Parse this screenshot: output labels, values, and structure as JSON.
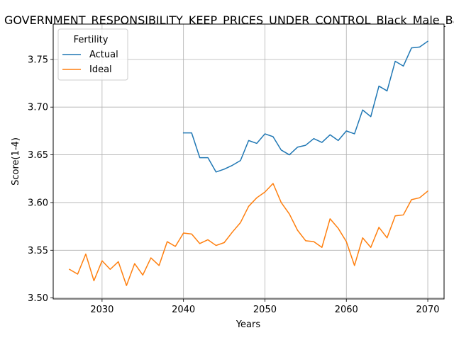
{
  "chart_data": {
    "type": "line",
    "title": "GOVERNMENT_RESPONSIBILITY_KEEP_PRICES_UNDER_CONTROL_Black_Male_Bachelor",
    "xlabel": "Years",
    "ylabel": "Score(1-4)",
    "xlim": [
      2024,
      2072
    ],
    "ylim": [
      3.499,
      3.787
    ],
    "xticks": [
      2030,
      2040,
      2050,
      2060,
      2070
    ],
    "yticks": [
      3.5,
      3.55,
      3.6,
      3.65,
      3.7,
      3.75
    ],
    "ytick_labels": [
      "3.50",
      "3.55",
      "3.60",
      "3.65",
      "3.70",
      "3.75"
    ],
    "grid": true,
    "legend": {
      "title": "Fertility",
      "placement": "top-left"
    },
    "series": [
      {
        "name": "Actual",
        "color": "#1f77b4",
        "x": [
          2040,
          2041,
          2042,
          2043,
          2044,
          2045,
          2046,
          2047,
          2048,
          2049,
          2050,
          2051,
          2052,
          2053,
          2054,
          2055,
          2056,
          2057,
          2058,
          2059,
          2060,
          2061,
          2062,
          2063,
          2064,
          2065,
          2066,
          2067,
          2068,
          2069,
          2070
        ],
        "values": [
          3.673,
          3.673,
          3.647,
          3.647,
          3.632,
          3.635,
          3.639,
          3.644,
          3.665,
          3.662,
          3.672,
          3.669,
          3.655,
          3.65,
          3.658,
          3.66,
          3.667,
          3.663,
          3.671,
          3.665,
          3.675,
          3.672,
          3.697,
          3.69,
          3.722,
          3.717,
          3.748,
          3.743,
          3.762,
          3.763,
          3.769
        ]
      },
      {
        "name": "Ideal",
        "color": "#ff7f0e",
        "x": [
          2026,
          2027,
          2028,
          2029,
          2030,
          2031,
          2032,
          2033,
          2034,
          2035,
          2036,
          2037,
          2038,
          2039,
          2040,
          2041,
          2042,
          2043,
          2044,
          2045,
          2046,
          2047,
          2048,
          2049,
          2050,
          2051,
          2052,
          2053,
          2054,
          2055,
          2056,
          2057,
          2058,
          2059,
          2060,
          2061,
          2062,
          2063,
          2064,
          2065,
          2066,
          2067,
          2068,
          2069,
          2070
        ],
        "values": [
          3.53,
          3.525,
          3.546,
          3.518,
          3.539,
          3.53,
          3.538,
          3.513,
          3.536,
          3.524,
          3.542,
          3.534,
          3.559,
          3.554,
          3.568,
          3.567,
          3.557,
          3.561,
          3.555,
          3.558,
          3.569,
          3.579,
          3.596,
          3.605,
          3.611,
          3.62,
          3.6,
          3.588,
          3.571,
          3.56,
          3.559,
          3.553,
          3.583,
          3.573,
          3.559,
          3.534,
          3.563,
          3.553,
          3.574,
          3.563,
          3.586,
          3.587,
          3.603,
          3.605,
          3.612
        ]
      }
    ]
  }
}
